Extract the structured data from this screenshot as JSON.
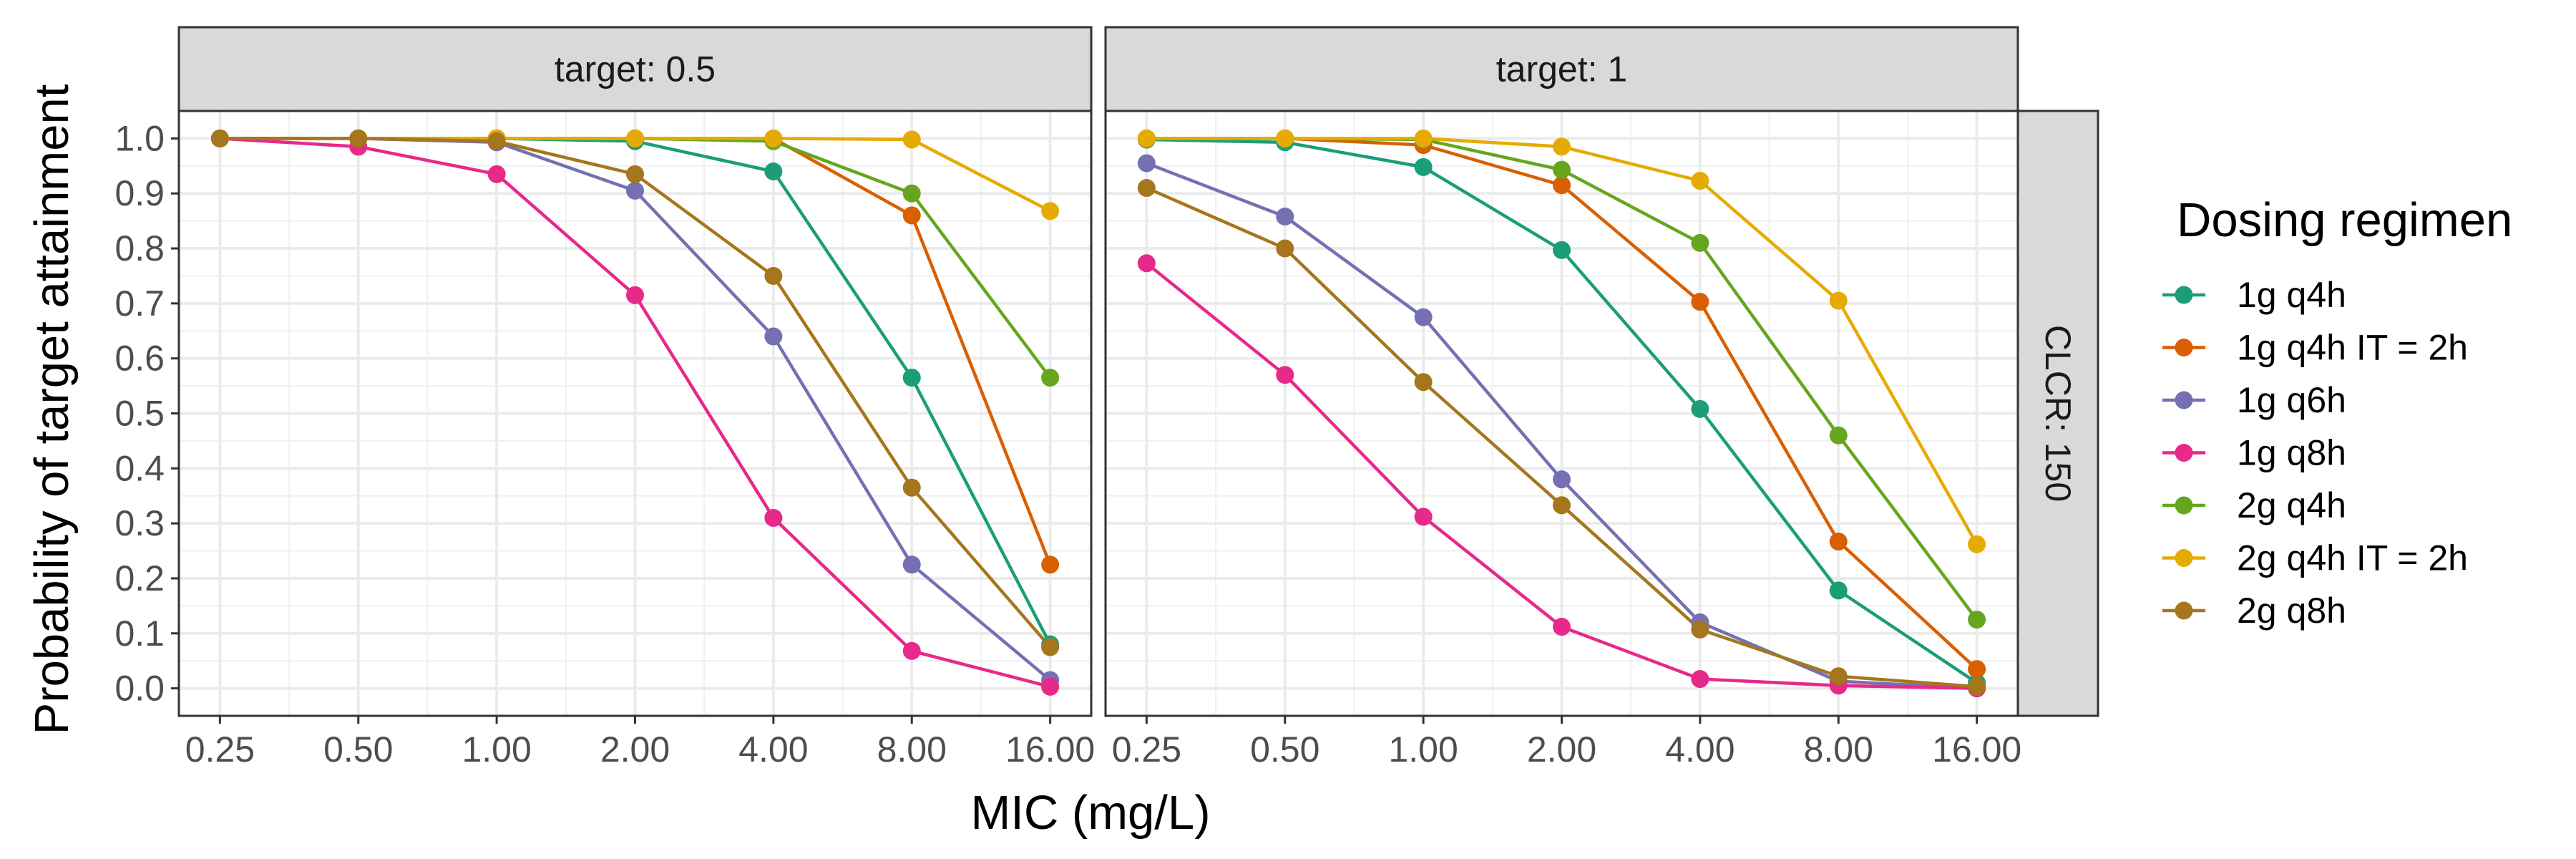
{
  "chart_data": {
    "type": "line",
    "xlabel": "MIC (mg/L)",
    "ylabel": "Probability of target attainment",
    "x": [
      "0.25",
      "0.50",
      "1.00",
      "2.00",
      "4.00",
      "8.00",
      "16.00"
    ],
    "x_scale": "log2",
    "ylim": [
      -0.05,
      1.05
    ],
    "y_ticks": [
      "0.0",
      "0.1",
      "0.2",
      "0.3",
      "0.4",
      "0.5",
      "0.6",
      "0.7",
      "0.8",
      "0.9",
      "1.0"
    ],
    "grid": true,
    "legend": {
      "title": "Dosing regimen",
      "position": "right"
    },
    "row_strip": "CLCR: 150",
    "panels": [
      {
        "strip": "target: 0.5",
        "series": [
          {
            "name": "1g q4h",
            "color": "#1b9e77",
            "values": [
              1.0,
              1.0,
              1.0,
              0.995,
              0.94,
              0.565,
              0.08
            ]
          },
          {
            "name": "1g q4h IT = 2h",
            "color": "#d95f02",
            "values": [
              1.0,
              1.0,
              1.0,
              1.0,
              1.0,
              0.86,
              0.225
            ]
          },
          {
            "name": "1g q6h",
            "color": "#7570b3",
            "values": [
              1.0,
              1.0,
              0.993,
              0.905,
              0.64,
              0.225,
              0.015
            ]
          },
          {
            "name": "1g q8h",
            "color": "#e7298a",
            "values": [
              1.0,
              0.985,
              0.935,
              0.715,
              0.31,
              0.068,
              0.003
            ]
          },
          {
            "name": "2g q4h",
            "color": "#66a61e",
            "values": [
              1.0,
              1.0,
              1.0,
              1.0,
              0.995,
              0.9,
              0.565
            ]
          },
          {
            "name": "2g q4h IT = 2h",
            "color": "#e6ab02",
            "values": [
              1.0,
              1.0,
              1.0,
              1.0,
              1.0,
              0.998,
              0.868
            ]
          },
          {
            "name": "2g q8h",
            "color": "#a6761d",
            "values": [
              1.0,
              1.0,
              0.995,
              0.935,
              0.75,
              0.365,
              0.075
            ]
          }
        ]
      },
      {
        "strip": "target: 1",
        "series": [
          {
            "name": "1g q4h",
            "color": "#1b9e77",
            "values": [
              0.998,
              0.993,
              0.948,
              0.797,
              0.508,
              0.178,
              0.01
            ]
          },
          {
            "name": "1g q4h IT = 2h",
            "color": "#d95f02",
            "values": [
              1.0,
              1.0,
              0.988,
              0.915,
              0.703,
              0.267,
              0.035
            ]
          },
          {
            "name": "1g q6h",
            "color": "#7570b3",
            "values": [
              0.955,
              0.858,
              0.675,
              0.38,
              0.12,
              0.013,
              0.0
            ]
          },
          {
            "name": "1g q8h",
            "color": "#e7298a",
            "values": [
              0.773,
              0.57,
              0.312,
              0.112,
              0.017,
              0.005,
              0.0
            ]
          },
          {
            "name": "2g q4h",
            "color": "#66a61e",
            "values": [
              1.0,
              1.0,
              0.998,
              0.943,
              0.81,
              0.46,
              0.125
            ]
          },
          {
            "name": "2g q4h IT = 2h",
            "color": "#e6ab02",
            "values": [
              1.0,
              1.0,
              1.0,
              0.985,
              0.923,
              0.705,
              0.262
            ]
          },
          {
            "name": "2g q8h",
            "color": "#a6761d",
            "values": [
              0.91,
              0.8,
              0.557,
              0.333,
              0.107,
              0.022,
              0.003
            ]
          }
        ]
      }
    ]
  }
}
